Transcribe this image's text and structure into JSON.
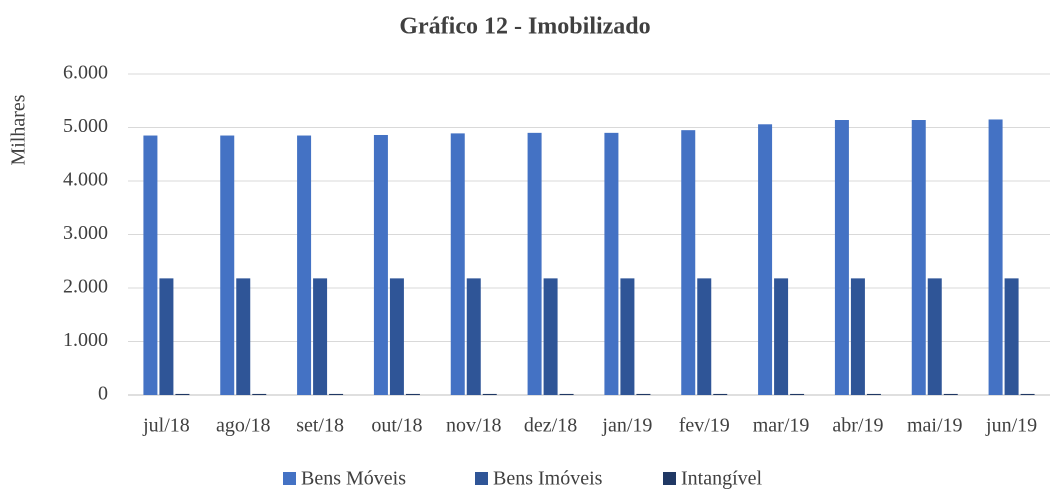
{
  "chart_data": {
    "type": "bar",
    "title": "Gráfico 12 - Imobilizado",
    "y_label": "Milhares",
    "categories": [
      "jul/18",
      "ago/18",
      "set/18",
      "out/18",
      "nov/18",
      "dez/18",
      "jan/19",
      "fev/19",
      "mar/19",
      "abr/19",
      "mai/19",
      "jun/19"
    ],
    "series": [
      {
        "name": "Bens Móveis",
        "color": "#4472c4",
        "values": [
          4850,
          4850,
          4850,
          4860,
          4890,
          4900,
          4900,
          4950,
          5060,
          5140,
          5140,
          5150
        ]
      },
      {
        "name": "Bens Imóveis",
        "color": "#2f5597",
        "values": [
          2180,
          2180,
          2180,
          2180,
          2180,
          2180,
          2180,
          2180,
          2180,
          2180,
          2180,
          2180
        ]
      },
      {
        "name": "Intangível",
        "color": "#203864",
        "values": [
          20,
          20,
          20,
          20,
          20,
          20,
          20,
          20,
          20,
          20,
          20,
          20
        ]
      }
    ],
    "ylim": [
      0,
      6000
    ],
    "yticks": [
      0,
      {
        "value": 1000,
        "label": "1.000"
      },
      {
        "value": 2000,
        "label": "2.000"
      },
      {
        "value": 3000,
        "label": "3.000"
      },
      {
        "value": 4000,
        "label": "4.000"
      },
      {
        "value": 5000,
        "label": "5.000"
      },
      {
        "value": 6000,
        "label": "6.000"
      }
    ],
    "grid": true,
    "legend": "bottom"
  }
}
